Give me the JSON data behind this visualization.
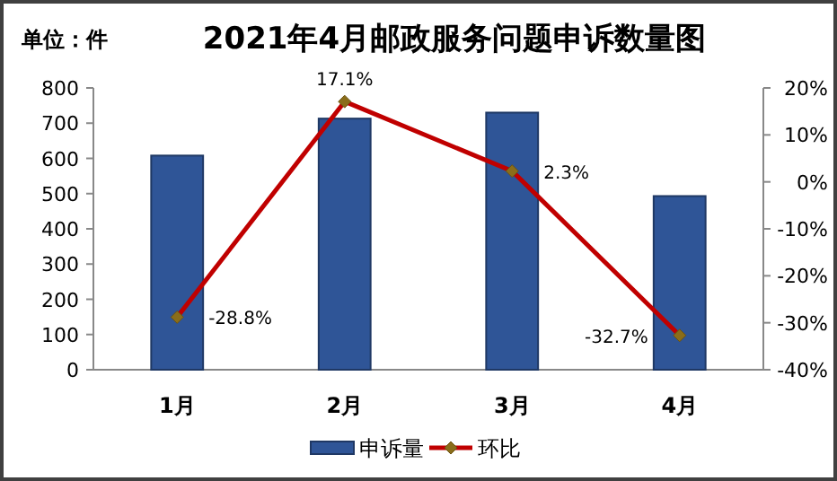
{
  "chart_data": {
    "type": "bar",
    "title": "2021年4月邮政服务问题申诉数量图",
    "annotations": [
      "单位：件"
    ],
    "categories": [
      "1月",
      "2月",
      "3月",
      "4月"
    ],
    "ylim": [
      0,
      800
    ],
    "yticks": [
      0,
      100,
      200,
      300,
      400,
      500,
      600,
      700,
      800
    ],
    "y2lim": [
      -40,
      20
    ],
    "y2ticks": [
      {
        "value": -40,
        "label": "-40%"
      },
      {
        "value": -30,
        "label": "-30%"
      },
      {
        "value": -20,
        "label": "-20%"
      },
      {
        "value": -10,
        "label": "-10%"
      },
      {
        "value": 0,
        "label": "0%"
      },
      {
        "value": 10,
        "label": "10%"
      },
      {
        "value": 20,
        "label": "20%"
      }
    ],
    "legend": "bottom",
    "marker": "diamond",
    "series": [
      {
        "name": "申诉量",
        "type": "bar",
        "color": "#2f5597",
        "values": [
          608,
          713,
          730,
          493
        ]
      },
      {
        "name": "环比",
        "type": "line",
        "axis": "y2",
        "color": "#c00000",
        "values": [
          -28.8,
          17.1,
          2.3,
          -32.7
        ],
        "value_labels": [
          "-28.8%",
          "17.1%",
          "2.3%",
          "-32.7%"
        ]
      }
    ]
  }
}
